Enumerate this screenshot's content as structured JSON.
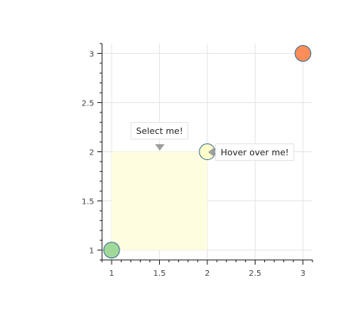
{
  "chart_data": {
    "type": "scatter",
    "title": "",
    "xlabel": "",
    "ylabel": "",
    "xlim": [
      0.9,
      3.1
    ],
    "ylim": [
      0.9,
      3.1
    ],
    "grid": true,
    "x_ticks": [
      1,
      1.5,
      2,
      2.5,
      3
    ],
    "x_tick_labels": [
      "1",
      "1.5",
      "2",
      "2.5",
      "3"
    ],
    "y_ticks": [
      1,
      1.5,
      2,
      2.5,
      3
    ],
    "y_tick_labels": [
      "1",
      "1.5",
      "2",
      "2.5",
      "3"
    ],
    "points": [
      {
        "x": 1,
        "y": 1,
        "color": "#a1d99b"
      },
      {
        "x": 2,
        "y": 2,
        "color": "#ffffcc"
      },
      {
        "x": 3,
        "y": 3,
        "color": "#fc8d59"
      }
    ],
    "box": {
      "x0": 1,
      "x1": 2,
      "y0": 1,
      "y1": 2,
      "color": "#fffde0"
    },
    "annotations": [
      {
        "text": "Select me!",
        "x": 1.5,
        "y": 2,
        "pointer": "down"
      },
      {
        "text": "Hover over me!",
        "x": 2,
        "y": 2,
        "pointer": "left"
      }
    ]
  },
  "colors": {
    "point_stroke": "#3b6e8f",
    "axis": "#222222",
    "grid": "#e6e6e6",
    "pointer": "#9e9e9e"
  }
}
